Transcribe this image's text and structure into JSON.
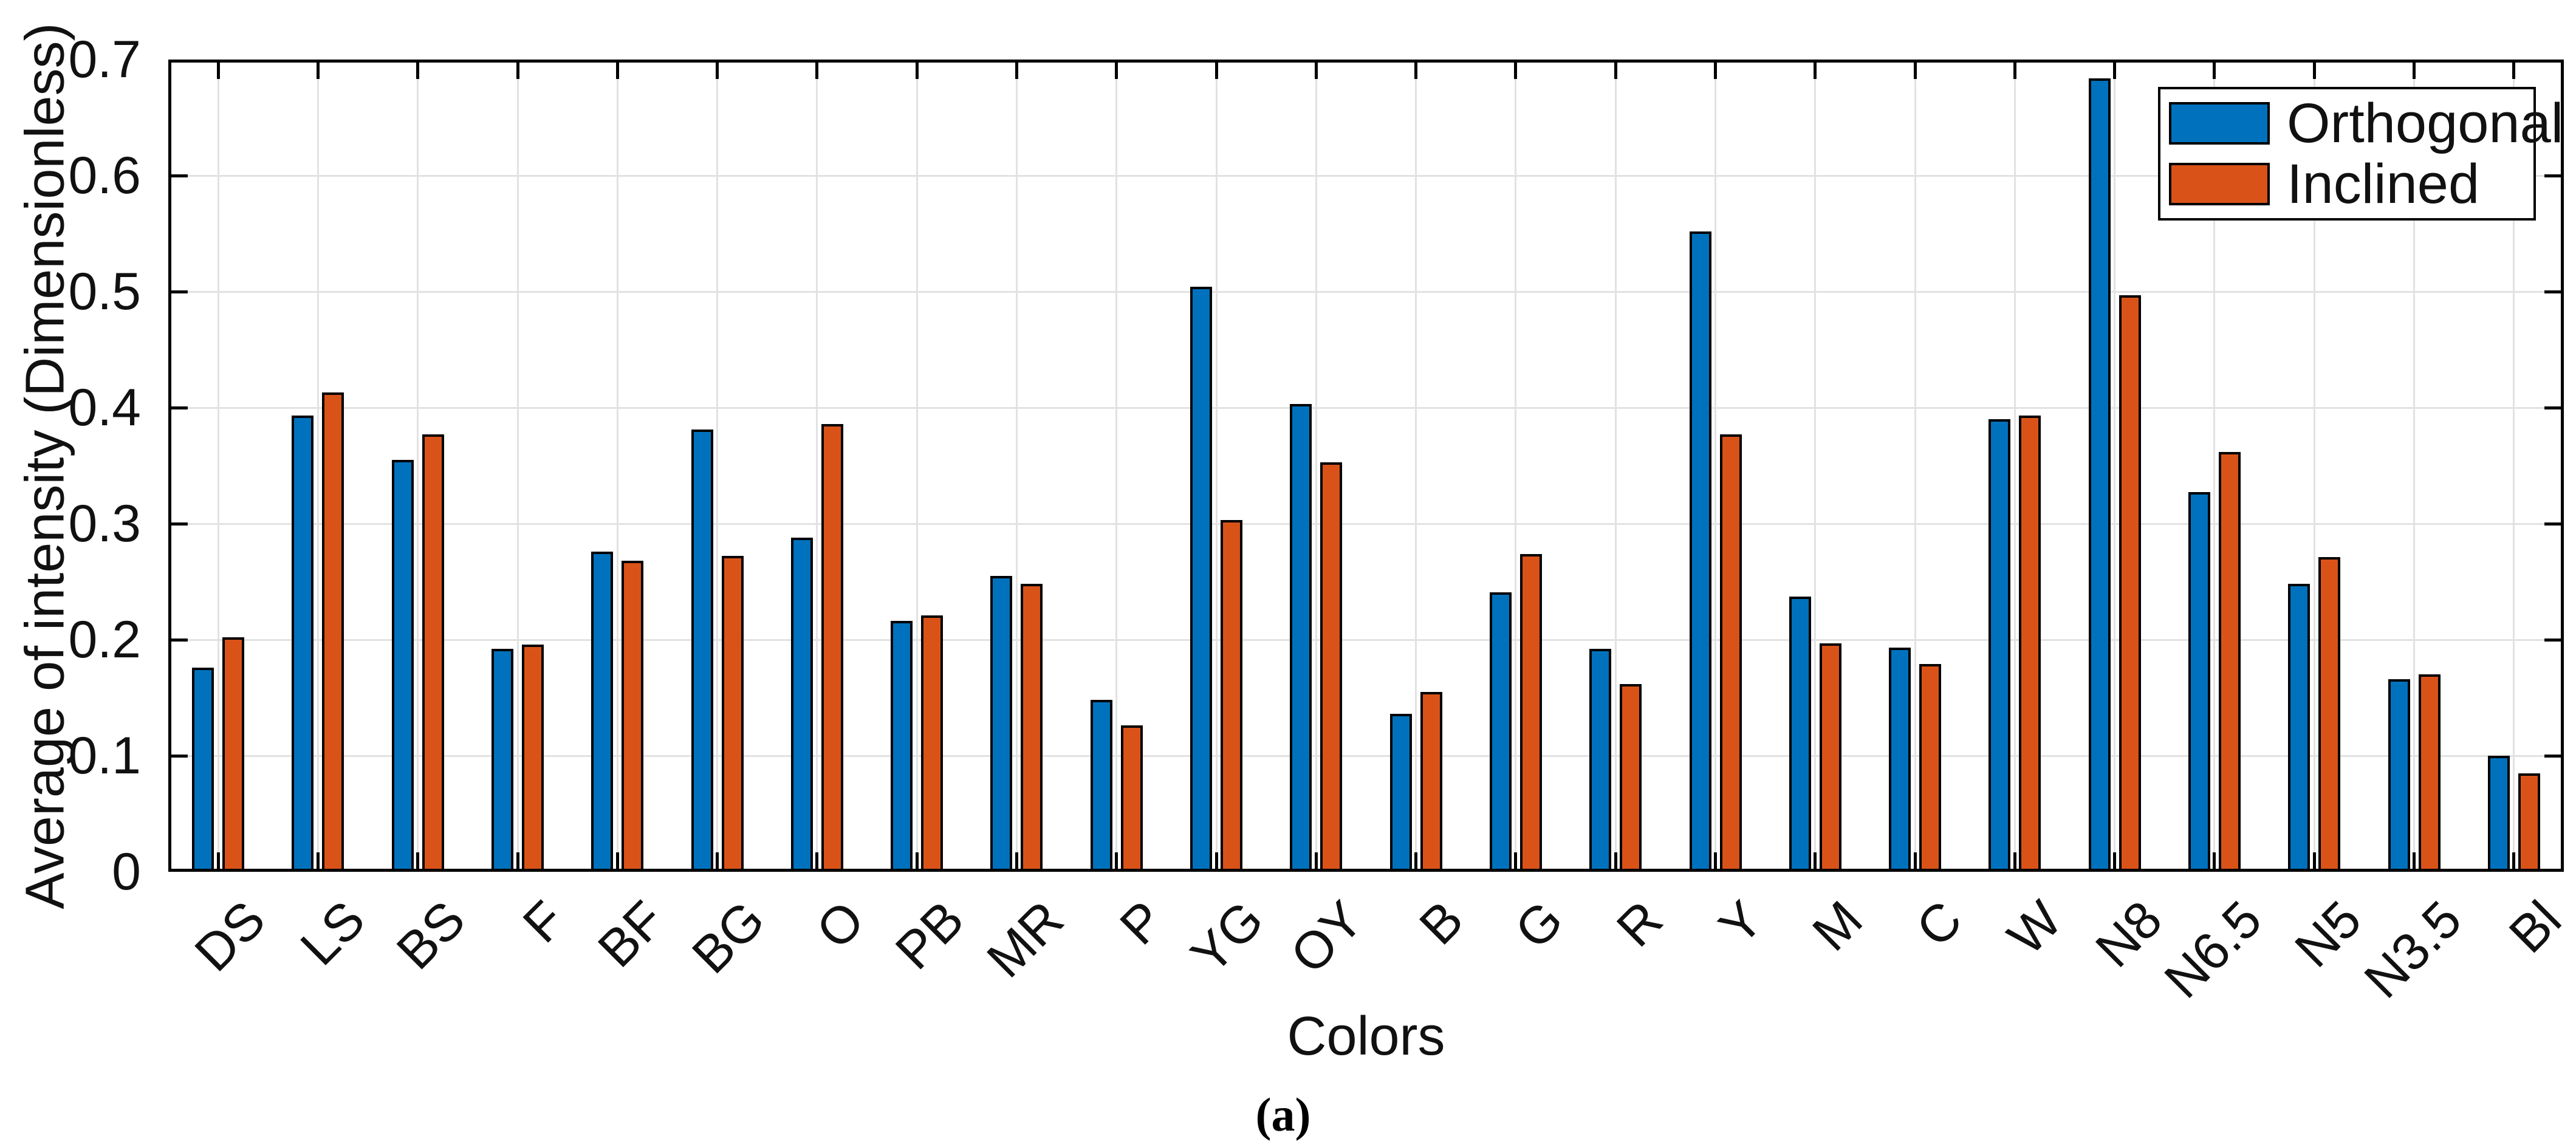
{
  "figure": {
    "caption": "(a)"
  },
  "chart_data": {
    "type": "bar",
    "title": "",
    "xlabel": "Colors",
    "ylabel": "Average of intensity (Dimensionless)",
    "ylim": [
      0,
      0.7
    ],
    "ytick_step": 0.1,
    "ytick_labels": [
      "0",
      "0.1",
      "0.2",
      "0.3",
      "0.4",
      "0.5",
      "0.6",
      "0.7"
    ],
    "grid": true,
    "legend_position": "northeast",
    "categories": [
      "DS",
      "LS",
      "BS",
      "F",
      "BF",
      "BG",
      "O",
      "PB",
      "MR",
      "P",
      "YG",
      "OY",
      "B",
      "G",
      "R",
      "Y",
      "M",
      "C",
      "W",
      "N8",
      "N6.5",
      "N5",
      "N3.5",
      "Bl"
    ],
    "series": [
      {
        "name": "Orthogonal",
        "color": "#0072BD",
        "values": [
          0.176,
          0.393,
          0.355,
          0.192,
          0.276,
          0.381,
          0.288,
          0.216,
          0.255,
          0.148,
          0.504,
          0.403,
          0.136,
          0.241,
          0.192,
          0.552,
          0.237,
          0.193,
          0.39,
          0.684,
          0.327,
          0.248,
          0.166,
          0.1
        ]
      },
      {
        "name": "Inclined",
        "color": "#D95319",
        "values": [
          0.202,
          0.413,
          0.377,
          0.196,
          0.268,
          0.272,
          0.386,
          0.221,
          0.248,
          0.126,
          0.303,
          0.353,
          0.155,
          0.274,
          0.162,
          0.377,
          0.197,
          0.179,
          0.393,
          0.497,
          0.362,
          0.271,
          0.17,
          0.085
        ]
      }
    ],
    "colors": {
      "axis": "#000000",
      "grid": "#e2e2e2",
      "background": "#ffffff"
    }
  }
}
